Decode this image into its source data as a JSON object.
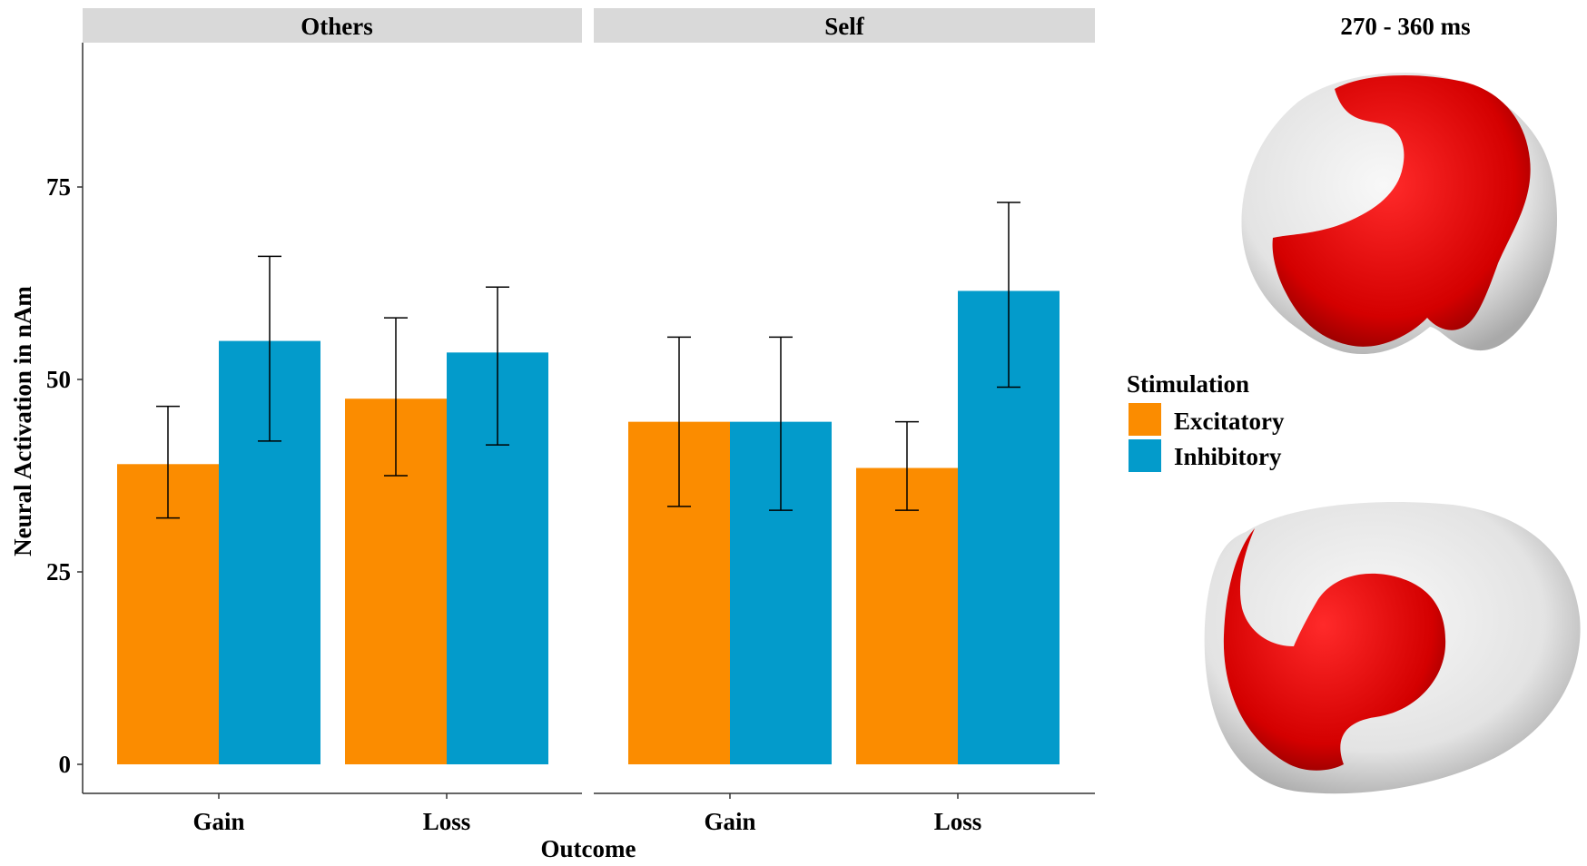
{
  "chart_data": {
    "type": "bar",
    "ylabel": "Neural Activation in nAm",
    "xlabel": "Outcome",
    "ylim": [
      0,
      92
    ],
    "yticks": [
      0,
      25,
      50,
      75
    ],
    "grid": false,
    "categories": [
      "Gain",
      "Loss"
    ],
    "legend": {
      "title": "Stimulation",
      "placement": "right",
      "entries": [
        {
          "name": "Excitatory",
          "color": "#FB8C00"
        },
        {
          "name": "Inhibitory",
          "color": "#039BCB"
        }
      ]
    },
    "facets": [
      {
        "title": "Others",
        "series": [
          {
            "name": "Excitatory",
            "values": [
              39,
              47.5
            ],
            "err_low": [
              32,
              37.5
            ],
            "err_high": [
              46.5,
              58
            ]
          },
          {
            "name": "Inhibitory",
            "values": [
              55,
              53.5
            ],
            "err_low": [
              42,
              41.5
            ],
            "err_high": [
              66,
              62
            ]
          }
        ]
      },
      {
        "title": "Self",
        "series": [
          {
            "name": "Excitatory",
            "values": [
              44.5,
              38.5
            ],
            "err_low": [
              33.5,
              33
            ],
            "err_high": [
              55.5,
              44.5
            ]
          },
          {
            "name": "Inhibitory",
            "values": [
              44.5,
              61.5
            ],
            "err_low": [
              33,
              49
            ],
            "err_high": [
              55.5,
              73
            ]
          }
        ]
      }
    ]
  },
  "brain_panel": {
    "title": "270 - 360 ms",
    "highlight_color": "#E00000",
    "base_color": "#E6E6E6",
    "views": [
      "posterior-view",
      "top-view"
    ]
  }
}
